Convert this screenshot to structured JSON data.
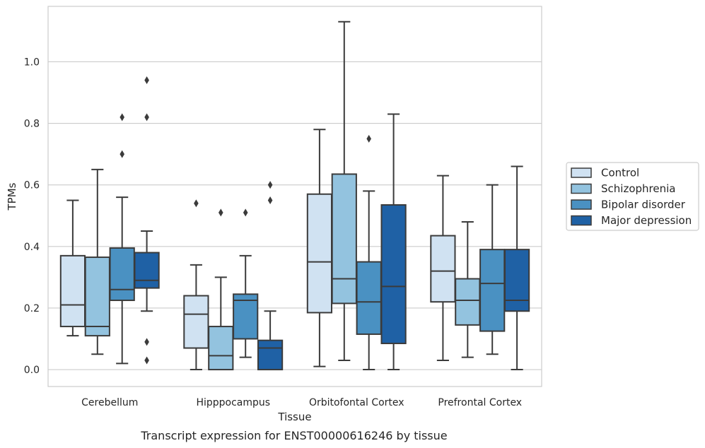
{
  "chart_data": {
    "type": "box",
    "title": "",
    "caption": "Transcript expression for ENST00000616246 by tissue",
    "xlabel": "Tissue",
    "ylabel": "TPMs",
    "ylim": [
      -0.055,
      1.18
    ],
    "yticks": [
      "0.0",
      "0.2",
      "0.4",
      "0.6",
      "0.8",
      "1.0"
    ],
    "grid": "horizontal",
    "legend_position": "right",
    "categories": [
      "Cerebellum",
      "Hipppocampus",
      "Orbitofontal Cortex",
      "Prefrontal Cortex"
    ],
    "series": [
      {
        "name": "Control",
        "color": "#d0e2f2",
        "boxes": [
          {
            "whisker_low": 0.11,
            "q1": 0.14,
            "median": 0.21,
            "q3": 0.37,
            "whisker_high": 0.55,
            "outliers": []
          },
          {
            "whisker_low": 0.0,
            "q1": 0.07,
            "median": 0.18,
            "q3": 0.24,
            "whisker_high": 0.34,
            "outliers": [
              0.54
            ]
          },
          {
            "whisker_low": 0.01,
            "q1": 0.185,
            "median": 0.35,
            "q3": 0.57,
            "whisker_high": 0.78,
            "outliers": []
          },
          {
            "whisker_low": 0.03,
            "q1": 0.22,
            "median": 0.32,
            "q3": 0.435,
            "whisker_high": 0.63,
            "outliers": []
          }
        ]
      },
      {
        "name": "Schizophrenia",
        "color": "#93c3df",
        "boxes": [
          {
            "whisker_low": 0.05,
            "q1": 0.11,
            "median": 0.14,
            "q3": 0.365,
            "whisker_high": 0.65,
            "outliers": []
          },
          {
            "whisker_low": 0.0,
            "q1": 0.0,
            "median": 0.045,
            "q3": 0.14,
            "whisker_high": 0.3,
            "outliers": [
              0.51
            ]
          },
          {
            "whisker_low": 0.03,
            "q1": 0.215,
            "median": 0.295,
            "q3": 0.635,
            "whisker_high": 1.13,
            "outliers": []
          },
          {
            "whisker_low": 0.04,
            "q1": 0.145,
            "median": 0.225,
            "q3": 0.295,
            "whisker_high": 0.48,
            "outliers": []
          }
        ]
      },
      {
        "name": "Bipolar disorder",
        "color": "#4a91c2",
        "boxes": [
          {
            "whisker_low": 0.02,
            "q1": 0.225,
            "median": 0.26,
            "q3": 0.395,
            "whisker_high": 0.56,
            "outliers": [
              0.7,
              0.82
            ]
          },
          {
            "whisker_low": 0.04,
            "q1": 0.1,
            "median": 0.225,
            "q3": 0.245,
            "whisker_high": 0.37,
            "outliers": [
              0.51
            ]
          },
          {
            "whisker_low": 0.0,
            "q1": 0.115,
            "median": 0.22,
            "q3": 0.35,
            "whisker_high": 0.58,
            "outliers": [
              0.75
            ]
          },
          {
            "whisker_low": 0.05,
            "q1": 0.125,
            "median": 0.28,
            "q3": 0.39,
            "whisker_high": 0.6,
            "outliers": []
          }
        ]
      },
      {
        "name": "Major depression",
        "color": "#1f61a5",
        "boxes": [
          {
            "whisker_low": 0.19,
            "q1": 0.265,
            "median": 0.29,
            "q3": 0.38,
            "whisker_high": 0.45,
            "outliers": [
              0.03,
              0.09,
              0.82,
              0.94
            ]
          },
          {
            "whisker_low": 0.0,
            "q1": 0.0,
            "median": 0.07,
            "q3": 0.095,
            "whisker_high": 0.19,
            "outliers": [
              0.55,
              0.6
            ]
          },
          {
            "whisker_low": 0.0,
            "q1": 0.085,
            "median": 0.27,
            "q3": 0.535,
            "whisker_high": 0.83,
            "outliers": []
          },
          {
            "whisker_low": 0.0,
            "q1": 0.19,
            "median": 0.225,
            "q3": 0.39,
            "whisker_high": 0.66,
            "outliers": []
          }
        ]
      }
    ]
  }
}
